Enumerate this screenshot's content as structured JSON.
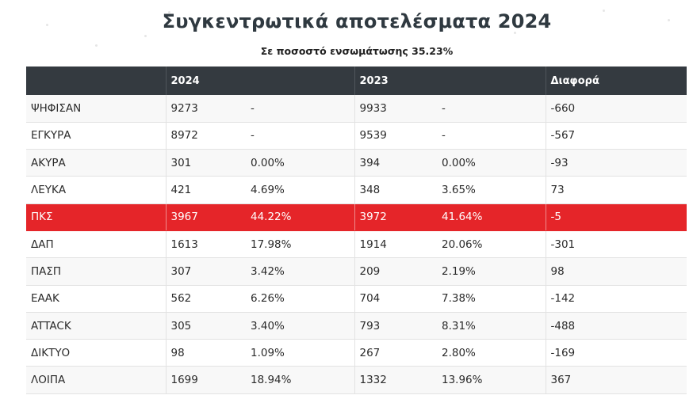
{
  "title": "Συγκεντρωτικά αποτελέσματα 2024",
  "subtitle": "Σε ποσοστό ενσωμάτωσης 35.23%",
  "table": {
    "headers": [
      "",
      "2024",
      "",
      "2023",
      "",
      "Διαφορά"
    ],
    "rows": [
      {
        "label": "ΨΗΦΙΣΑΝ",
        "v2024": "9273",
        "p2024": "-",
        "v2023": "9933",
        "p2023": "-",
        "diff": "-660"
      },
      {
        "label": "ΕΓΚΥΡΑ",
        "v2024": "8972",
        "p2024": "-",
        "v2023": "9539",
        "p2023": "-",
        "diff": "-567"
      },
      {
        "label": "ΑΚΥΡΑ",
        "v2024": "301",
        "p2024": "0.00%",
        "v2023": "394",
        "p2023": "0.00%",
        "diff": "-93"
      },
      {
        "label": "ΛΕΥΚΑ",
        "v2024": "421",
        "p2024": "4.69%",
        "v2023": "348",
        "p2023": "3.65%",
        "diff": "73"
      },
      {
        "label": "ΠΚΣ",
        "v2024": "3967",
        "p2024": "44.22%",
        "v2023": "3972",
        "p2023": "41.64%",
        "diff": "-5"
      },
      {
        "label": "ΔΑΠ",
        "v2024": "1613",
        "p2024": "17.98%",
        "v2023": "1914",
        "p2023": "20.06%",
        "diff": "-301"
      },
      {
        "label": "ΠΑΣΠ",
        "v2024": "307",
        "p2024": "3.42%",
        "v2023": "209",
        "p2023": "2.19%",
        "diff": "98"
      },
      {
        "label": "ΕΑΑΚ",
        "v2024": "562",
        "p2024": "6.26%",
        "v2023": "704",
        "p2023": "7.38%",
        "diff": "-142"
      },
      {
        "label": "ATTACK",
        "v2024": "305",
        "p2024": "3.40%",
        "v2023": "793",
        "p2023": "8.31%",
        "diff": "-488"
      },
      {
        "label": "ΔΙΚΤΥΟ",
        "v2024": "98",
        "p2024": "1.09%",
        "v2023": "267",
        "p2023": "2.80%",
        "diff": "-169"
      },
      {
        "label": "ΛΟΙΠΑ",
        "v2024": "1699",
        "p2024": "18.94%",
        "v2023": "1332",
        "p2023": "13.96%",
        "diff": "367"
      }
    ]
  },
  "colors": {
    "header_bg": "#343a40",
    "highlight_row_bg": "#e52529",
    "title_color": "#2f3940"
  },
  "highlight_row": "ΠΚΣ"
}
